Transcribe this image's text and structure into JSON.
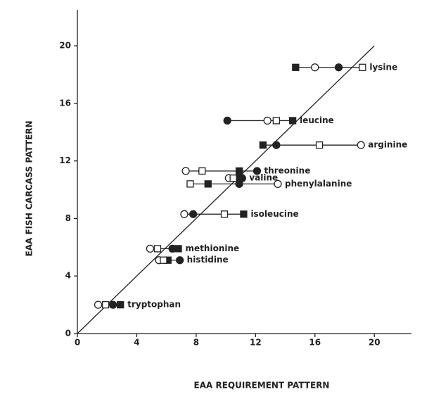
{
  "chart_data": {
    "type": "scatter",
    "xlabel": "EAA  REQUIREMENT  PATTERN",
    "ylabel": "EAA  FISH  CARCASS  PATTERN",
    "xlim": [
      0,
      22.5
    ],
    "ylim": [
      0,
      22.5
    ],
    "xticks": [
      0,
      4,
      8,
      12,
      16,
      20
    ],
    "yticks": [
      0,
      4,
      8,
      12,
      16,
      20
    ],
    "identity_line": true,
    "categories": [
      "lysine",
      "leucine",
      "arginine",
      "threonine",
      "valine",
      "phenylalanine",
      "isoleucine",
      "methionine",
      "histidine",
      "tryptophan"
    ],
    "y": [
      18.5,
      14.8,
      13.1,
      11.3,
      10.8,
      10.4,
      8.3,
      5.9,
      5.1,
      2.0
    ],
    "series": [
      {
        "marker": "filled-square",
        "color": "#222222",
        "x": [
          14.7,
          14.5,
          12.5,
          10.9,
          10.9,
          8.8,
          11.2,
          6.8,
          6.1,
          2.9
        ]
      },
      {
        "marker": "open-circle",
        "color": "#222222",
        "x": [
          16.0,
          12.8,
          19.1,
          7.3,
          10.2,
          13.5,
          7.2,
          4.9,
          5.5,
          1.4
        ]
      },
      {
        "marker": "filled-circle",
        "color": "#222222",
        "x": [
          17.6,
          10.1,
          13.4,
          12.1,
          11.1,
          10.9,
          7.8,
          6.4,
          6.9,
          2.4
        ]
      },
      {
        "marker": "open-square",
        "color": "#222222",
        "x": [
          19.2,
          13.4,
          16.3,
          8.4,
          10.5,
          7.6,
          9.9,
          5.4,
          5.8,
          1.9
        ]
      }
    ]
  }
}
